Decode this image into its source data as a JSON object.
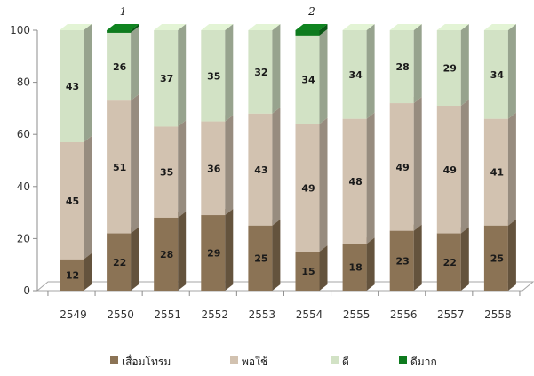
{
  "chart_data": {
    "type": "bar",
    "stacked": true,
    "three_d": true,
    "categories": [
      "2549",
      "2550",
      "2551",
      "2552",
      "2553",
      "2554",
      "2555",
      "2556",
      "2557",
      "2558"
    ],
    "series": [
      {
        "name": "เสื่อมโทรม",
        "color": "#8b7355",
        "values": [
          12,
          22,
          28,
          29,
          25,
          15,
          18,
          23,
          22,
          25
        ]
      },
      {
        "name": "พอใช้",
        "color": "#d2c2b0",
        "values": [
          45,
          51,
          35,
          36,
          43,
          49,
          48,
          49,
          49,
          41
        ]
      },
      {
        "name": "ดี",
        "color": "#d2e2c5",
        "values": [
          43,
          26,
          37,
          35,
          32,
          34,
          34,
          28,
          29,
          34
        ]
      },
      {
        "name": "ดีมาก",
        "color": "#0e7a1e",
        "values": [
          0,
          1,
          0,
          0,
          0,
          2,
          0,
          0,
          0,
          0
        ]
      }
    ],
    "annotations": [
      {
        "category": "2550",
        "text": "1"
      },
      {
        "category": "2554",
        "text": "2"
      }
    ],
    "ylim": [
      0,
      100
    ],
    "yticks": [
      0,
      20,
      40,
      60,
      80,
      100
    ],
    "title": "",
    "xlabel": "",
    "ylabel": "",
    "legend_position": "bottom",
    "grid": false
  }
}
